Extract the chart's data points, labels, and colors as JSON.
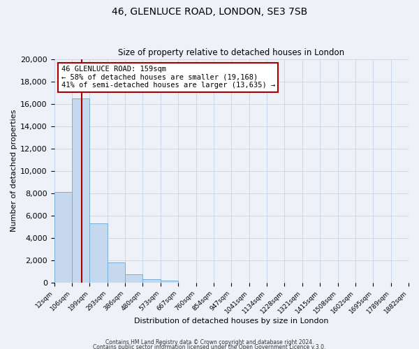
{
  "title": "46, GLENLUCE ROAD, LONDON, SE3 7SB",
  "subtitle": "Size of property relative to detached houses in London",
  "xlabel": "Distribution of detached houses by size in London",
  "ylabel": "Number of detached properties",
  "bin_labels": [
    "12sqm",
    "106sqm",
    "199sqm",
    "293sqm",
    "386sqm",
    "480sqm",
    "573sqm",
    "667sqm",
    "760sqm",
    "854sqm",
    "947sqm",
    "1041sqm",
    "1134sqm",
    "1228sqm",
    "1321sqm",
    "1415sqm",
    "1508sqm",
    "1602sqm",
    "1695sqm",
    "1789sqm",
    "1882sqm"
  ],
  "bar_heights": [
    8100,
    16500,
    5300,
    1800,
    750,
    300,
    200,
    0,
    0,
    0,
    0,
    0,
    0,
    0,
    0,
    0,
    0,
    0,
    0,
    0
  ],
  "bar_color": "#c5d8ed",
  "bar_edgecolor": "#7aaed6",
  "ylim": [
    0,
    20000
  ],
  "yticks": [
    0,
    2000,
    4000,
    6000,
    8000,
    10000,
    12000,
    14000,
    16000,
    18000,
    20000
  ],
  "marker_label": "46 GLENLUCE ROAD: 159sqm",
  "annotation_line1": "← 58% of detached houses are smaller (19,168)",
  "annotation_line2": "41% of semi-detached houses are larger (13,635) →",
  "footer_line1": "Contains HM Land Registry data © Crown copyright and database right 2024.",
  "footer_line2": "Contains public sector information licensed under the Open Government Licence v.3.0.",
  "background_color": "#eef2f8",
  "grid_color": "#c8d8ea"
}
